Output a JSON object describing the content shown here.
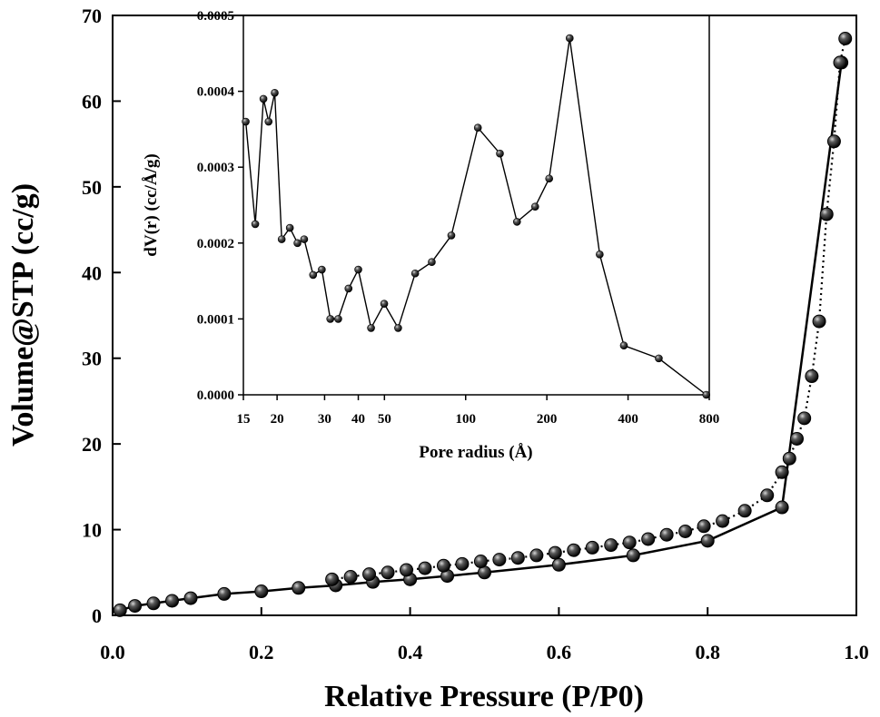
{
  "chart_data": [
    {
      "type": "scatter",
      "title": "",
      "xlabel": "Relative Pressure (P/P0)",
      "ylabel": "Volume@STP (cc/g)",
      "xlim": [
        0.0,
        1.0
      ],
      "ylim": [
        0,
        70
      ],
      "xticks": [
        "0.0",
        "0.2",
        "0.4",
        "0.6",
        "0.8",
        "1.0"
      ],
      "yticks": [
        "0",
        "10",
        "20",
        "30",
        "40",
        "50",
        "60",
        "70"
      ],
      "grid": false,
      "series": [
        {
          "style": "line-markers",
          "color": "#000000",
          "x": [
            0.01,
            0.03,
            0.055,
            0.08,
            0.105,
            0.15,
            0.2,
            0.25,
            0.3,
            0.35,
            0.4,
            0.45,
            0.5,
            0.6,
            0.7,
            0.8,
            0.9,
            0.98
          ],
          "y": [
            0.6,
            1.1,
            1.4,
            1.7,
            2.0,
            2.5,
            2.8,
            3.2,
            3.5,
            3.9,
            4.2,
            4.6,
            5.0,
            5.9,
            7.0,
            8.7,
            12.6,
            64.5
          ]
        },
        {
          "style": "dotted-markers",
          "color": "#000000",
          "x": [
            0.985,
            0.978,
            0.97,
            0.96,
            0.95,
            0.94,
            0.93,
            0.92,
            0.91,
            0.9,
            0.88,
            0.85,
            0.82,
            0.795,
            0.77,
            0.745,
            0.72,
            0.695,
            0.67,
            0.645,
            0.62,
            0.595,
            0.57,
            0.545,
            0.52,
            0.495,
            0.47,
            0.445,
            0.42,
            0.395,
            0.37,
            0.345,
            0.32,
            0.295
          ],
          "y": [
            67.3,
            64.5,
            55.3,
            46.8,
            34.3,
            27.9,
            23.0,
            20.6,
            18.3,
            16.7,
            14.0,
            12.2,
            11.0,
            10.4,
            9.8,
            9.4,
            8.9,
            8.5,
            8.2,
            7.9,
            7.6,
            7.3,
            7.0,
            6.7,
            6.5,
            6.3,
            6.0,
            5.8,
            5.5,
            5.3,
            5.0,
            4.8,
            4.5,
            4.2
          ]
        }
      ]
    },
    {
      "type": "line",
      "title": "",
      "xlabel": "Pore radius (Å)",
      "ylabel": "dV(r) (cc/Å/g)",
      "xscale": "log",
      "xlim": [
        15,
        800
      ],
      "ylim": [
        0,
        0.0005
      ],
      "xticks": [
        "15",
        "20",
        "30",
        "40",
        "50",
        "100",
        "200",
        "400",
        "800"
      ],
      "yticks": [
        "0.0000",
        "0.0001",
        "0.0002",
        "0.0003",
        "0.0004",
        "0.0005"
      ],
      "grid": false,
      "series": [
        {
          "style": "line-markers",
          "color": "#000000",
          "x": [
            15.3,
            16.6,
            17.8,
            18.6,
            19.6,
            20.8,
            22.3,
            23.8,
            25.2,
            27.2,
            29.3,
            31.5,
            33.7,
            36.8,
            40.0,
            44.6,
            49.9,
            56.2,
            65.0,
            74.9,
            88.5,
            111,
            134,
            155,
            181,
            204,
            243,
            314,
            386,
            520,
            780
          ],
          "y": [
            0.00036,
            0.000225,
            0.00039,
            0.00036,
            0.000398,
            0.000205,
            0.00022,
            0.0002,
            0.000205,
            0.000158,
            0.000165,
            0.0001,
            0.0001,
            0.00014,
            0.000165,
            8.8e-05,
            0.00012,
            8.8e-05,
            0.00016,
            0.000175,
            0.00021,
            0.000352,
            0.000318,
            0.000228,
            0.000248,
            0.000285,
            0.00047,
            0.000185,
            6.5e-05,
            4.8e-05,
            0.0
          ]
        }
      ]
    }
  ]
}
